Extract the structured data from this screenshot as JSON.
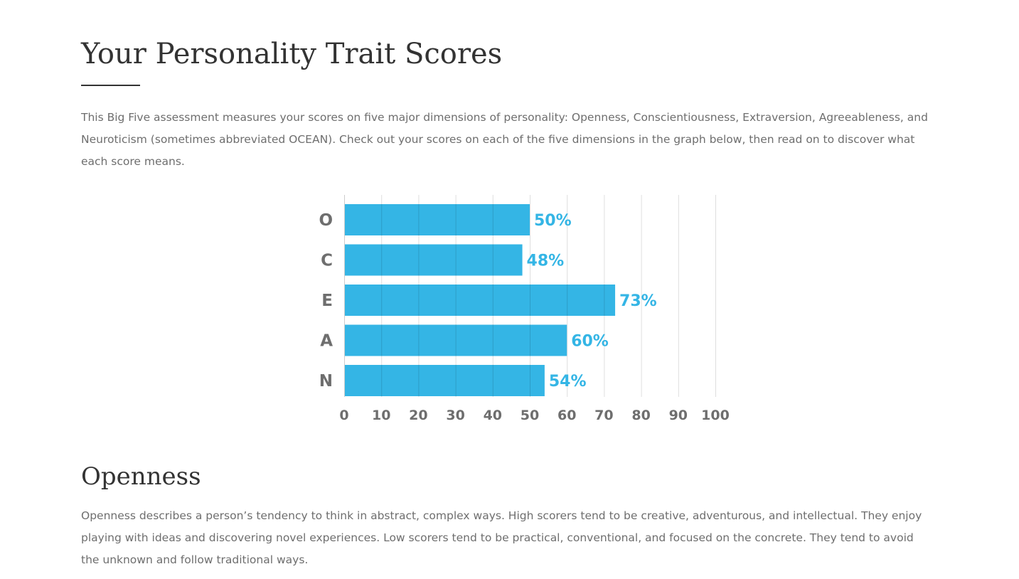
{
  "page": {
    "title": "Your Personality Trait Scores",
    "intro": "This Big Five assessment measures your scores on five major dimensions of personality: Openness, Conscientiousness, Extraversion, Agreeableness, and Neuroticism (sometimes abbreviated OCEAN). Check out your scores on each of the five dimensions in the graph below, then read on to discover what each score means."
  },
  "chart_data": {
    "type": "bar",
    "orientation": "horizontal",
    "title": "",
    "xlabel": "",
    "ylabel": "",
    "categories": [
      "O",
      "C",
      "E",
      "A",
      "N"
    ],
    "values": [
      50,
      48,
      73,
      60,
      54
    ],
    "value_labels": [
      "50%",
      "48%",
      "73%",
      "60%",
      "54%"
    ],
    "xlim": [
      0,
      100
    ],
    "x_ticks": [
      0,
      10,
      20,
      30,
      40,
      50,
      60,
      70,
      80,
      90,
      100
    ],
    "x_tick_labels": [
      "0",
      "10",
      "20",
      "30",
      "40",
      "50",
      "60",
      "70",
      "80",
      "90",
      "100"
    ],
    "grid": true,
    "legend": "none",
    "bar_color": "#34b5e5",
    "label_color": "#34b5e5",
    "axis_text_color": "#6e6e6e",
    "grid_color": "#dddddd"
  },
  "section": {
    "title": "Openness",
    "body": "Openness describes a person’s tendency to think in abstract, complex ways. High scorers tend to be creative, adventurous, and intellectual. They enjoy playing with ideas and discovering novel experiences. Low scorers tend to be practical, conventional, and focused on the concrete. They tend to avoid the unknown and follow traditional ways."
  }
}
